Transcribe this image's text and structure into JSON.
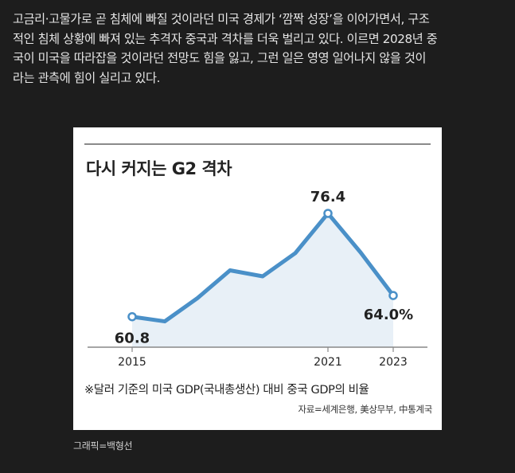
{
  "article": {
    "lines": [
      "고금리·고물가로 곧 침체에 빠질 것이라던 미국 경제가 ‘깜짝 성장’을 이어가면서, 구조",
      "적인 침체 상황에 빠져 있는 추격자 중국과 격차를 더욱 벌리고 있다. 이르면 2028년 중",
      "국이 미국을 따라잡을 것이라던 전망도 힘을 잃고, 그런 일은 영영 일어나지 않을 것이",
      "라는 관측에 힘이 실리고 있다."
    ]
  },
  "chart_data": {
    "type": "area",
    "title": "다시 커지는 G2 격차",
    "x": [
      2015,
      2016,
      2017,
      2018,
      2019,
      2020,
      2021,
      2022,
      2023
    ],
    "values": [
      60.8,
      60.1,
      63.6,
      67.8,
      66.9,
      70.4,
      76.4,
      70.5,
      64.0
    ],
    "x_tick_labels": [
      "2015",
      "2021",
      "2023"
    ],
    "x_tick_values": [
      2015,
      2021,
      2023
    ],
    "data_labels": [
      {
        "x": 2015,
        "text": "60.8"
      },
      {
        "x": 2021,
        "text": "76.4"
      },
      {
        "x": 2023,
        "text": "64.0%"
      }
    ],
    "ylim": [
      55,
      80
    ],
    "grid": false,
    "line_color": "#4a90c8",
    "fill_color": "#e8f0f7",
    "axis_color": "#888888"
  },
  "footnote": "※달러 기준의 미국 GDP(국내총생산) 대비 중국 GDP의 비율",
  "source": "자료=세계은행, 美상무부, 中통계국",
  "credit": "그래픽=백형선"
}
